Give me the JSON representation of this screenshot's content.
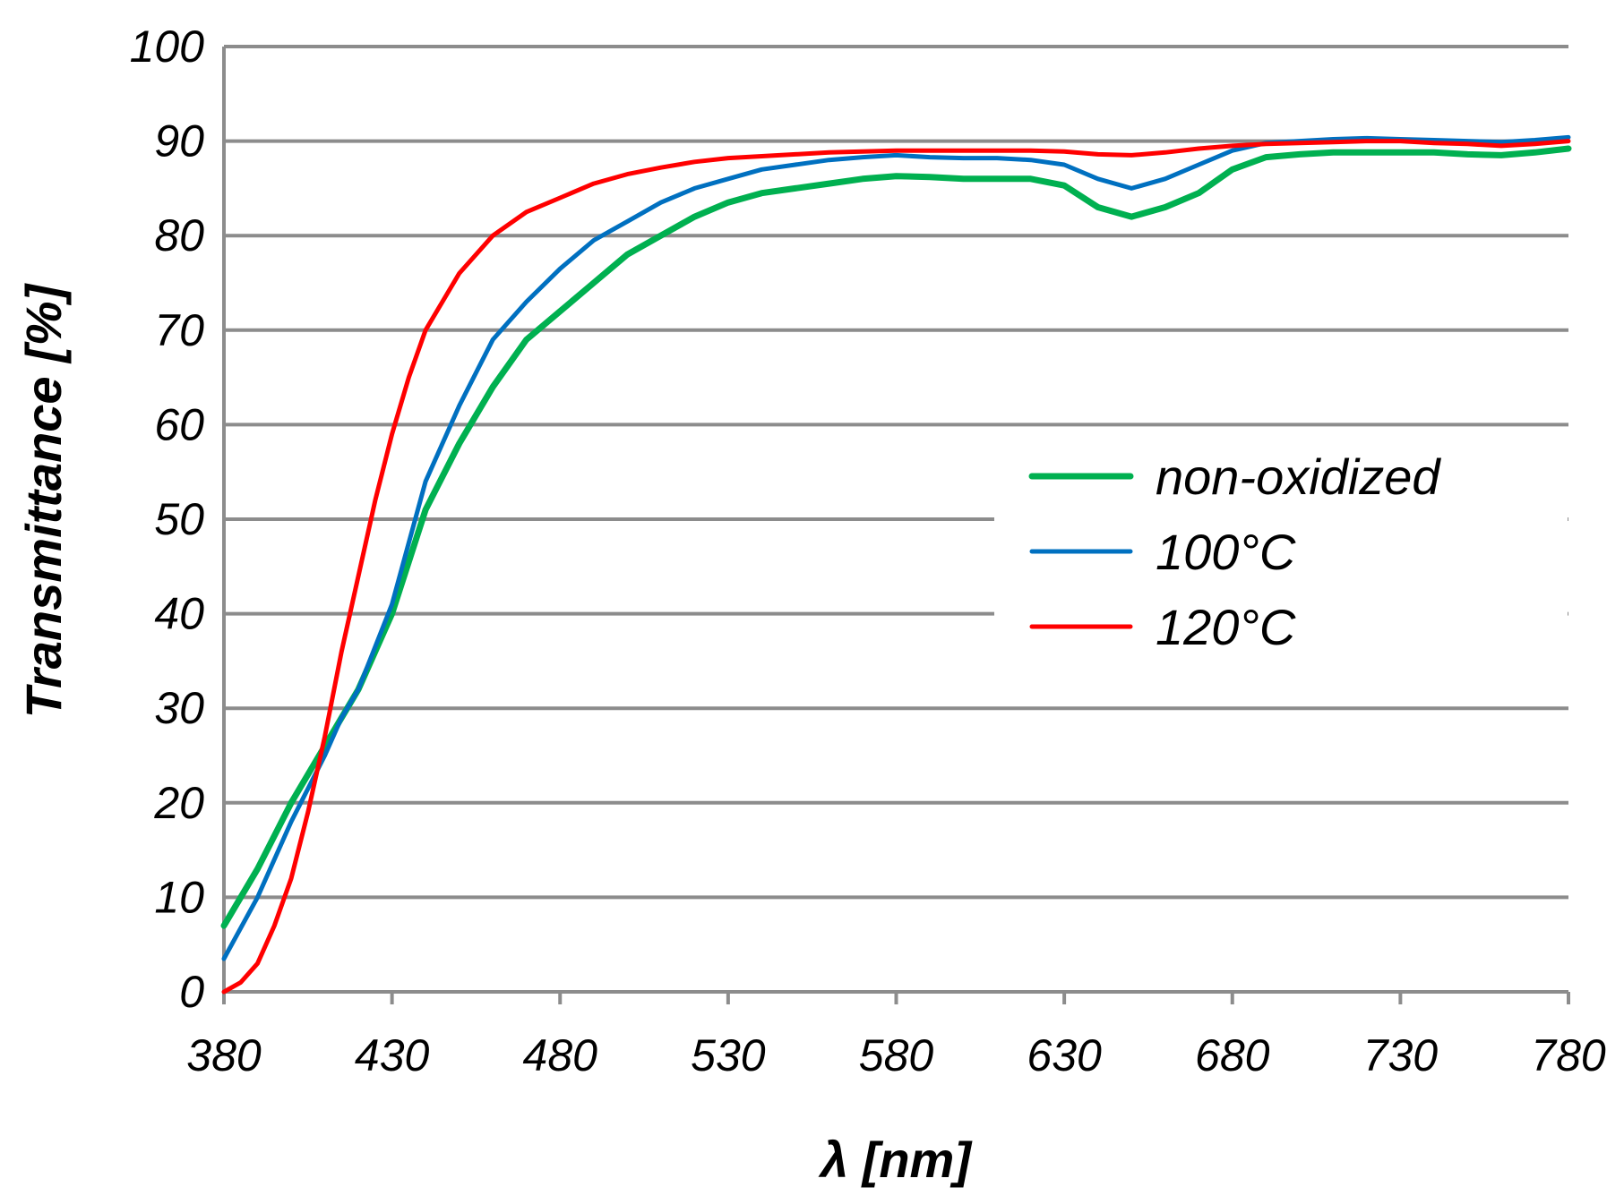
{
  "chart_data": {
    "type": "line",
    "title": "",
    "xlabel": "λ [nm]",
    "ylabel": "Transmittance [%]",
    "xlim": [
      380,
      780
    ],
    "ylim": [
      0,
      100
    ],
    "xticks": [
      380,
      430,
      480,
      530,
      580,
      630,
      680,
      730,
      780
    ],
    "yticks": [
      0,
      10,
      20,
      30,
      40,
      50,
      60,
      70,
      80,
      90,
      100
    ],
    "grid": true,
    "legend_position": "right-center",
    "series": [
      {
        "name": "non-oxidized",
        "color": "#00b050",
        "x": [
          380,
          390,
          400,
          410,
          415,
          420,
          430,
          440,
          450,
          460,
          470,
          480,
          490,
          500,
          510,
          520,
          530,
          540,
          550,
          560,
          570,
          580,
          590,
          600,
          610,
          620,
          630,
          640,
          650,
          660,
          670,
          680,
          690,
          700,
          710,
          720,
          730,
          740,
          750,
          760,
          770,
          780
        ],
        "y": [
          7,
          13,
          20,
          26,
          29,
          32,
          40,
          51,
          58,
          64,
          69,
          72,
          75,
          78,
          80,
          82,
          83.5,
          84.5,
          85,
          85.5,
          86,
          86.3,
          86.2,
          86,
          86,
          86,
          85.3,
          83,
          82,
          83,
          84.5,
          87,
          88.3,
          88.6,
          88.8,
          88.8,
          88.8,
          88.8,
          88.6,
          88.5,
          88.8,
          89.2
        ]
      },
      {
        "name": "100°C",
        "color": "#0070c0",
        "x": [
          380,
          390,
          400,
          410,
          415,
          420,
          430,
          440,
          450,
          460,
          470,
          480,
          490,
          500,
          510,
          520,
          530,
          540,
          550,
          560,
          570,
          580,
          590,
          600,
          610,
          620,
          630,
          640,
          650,
          660,
          670,
          680,
          690,
          700,
          710,
          720,
          730,
          740,
          750,
          760,
          770,
          780
        ],
        "y": [
          3.5,
          10,
          18,
          25,
          29,
          32,
          41,
          54,
          62,
          69,
          73,
          76.5,
          79.5,
          81.5,
          83.5,
          85,
          86,
          87,
          87.5,
          88,
          88.3,
          88.5,
          88.3,
          88.2,
          88.2,
          88,
          87.5,
          86,
          85,
          86,
          87.5,
          89,
          89.8,
          90,
          90.2,
          90.3,
          90.2,
          90.1,
          90,
          89.9,
          90.1,
          90.4
        ]
      },
      {
        "name": "120°C",
        "color": "#ff0000",
        "x": [
          380,
          385,
          390,
          395,
          400,
          405,
          410,
          415,
          420,
          425,
          430,
          435,
          440,
          445,
          450,
          460,
          470,
          480,
          490,
          500,
          510,
          520,
          530,
          540,
          550,
          560,
          570,
          580,
          590,
          600,
          610,
          620,
          630,
          640,
          650,
          660,
          670,
          680,
          690,
          700,
          710,
          720,
          730,
          740,
          750,
          760,
          770,
          780
        ],
        "y": [
          0,
          1,
          3,
          7,
          12,
          19,
          27,
          36,
          44,
          52,
          59,
          65,
          70,
          73,
          76,
          80,
          82.5,
          84,
          85.5,
          86.5,
          87.2,
          87.8,
          88.2,
          88.4,
          88.6,
          88.8,
          88.9,
          89,
          89,
          89,
          89,
          89,
          88.9,
          88.6,
          88.5,
          88.8,
          89.2,
          89.5,
          89.7,
          89.8,
          89.9,
          90,
          90,
          89.8,
          89.7,
          89.5,
          89.7,
          90
        ]
      }
    ]
  }
}
